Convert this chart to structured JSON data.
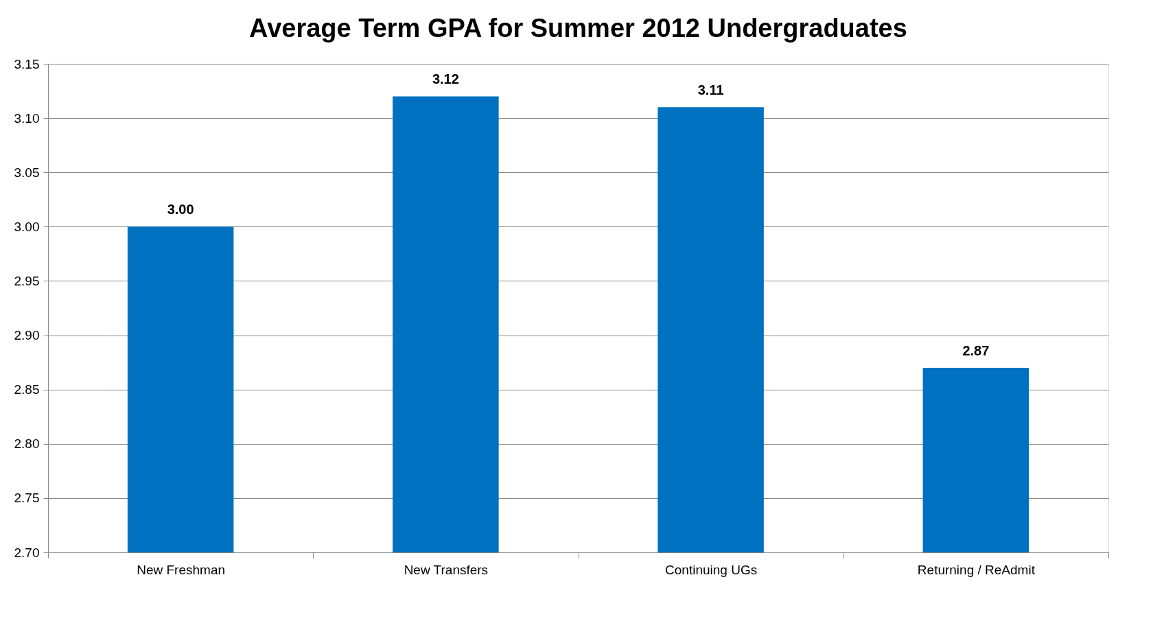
{
  "chart_data": {
    "type": "bar",
    "title": "Average Term GPA for Summer 2012 Undergraduates",
    "categories": [
      "New Freshman",
      "New Transfers",
      "Continuing UGs",
      "Returning / ReAdmit"
    ],
    "values": [
      3.0,
      3.12,
      3.11,
      2.87
    ],
    "value_labels": [
      "3.00",
      "3.12",
      "3.11",
      "2.87"
    ],
    "color": "#0070c0",
    "ylim": [
      2.7,
      3.15
    ],
    "yticks": [
      {
        "value": 2.7,
        "label": "2.70"
      },
      {
        "value": 2.75,
        "label": "2.75"
      },
      {
        "value": 2.8,
        "label": "2.80"
      },
      {
        "value": 2.85,
        "label": "2.85"
      },
      {
        "value": 2.9,
        "label": "2.90"
      },
      {
        "value": 2.95,
        "label": "2.95"
      },
      {
        "value": 3.0,
        "label": "3.00"
      },
      {
        "value": 3.05,
        "label": "3.05"
      },
      {
        "value": 3.1,
        "label": "3.10"
      },
      {
        "value": 3.15,
        "label": "3.15"
      }
    ],
    "grid": "y"
  }
}
